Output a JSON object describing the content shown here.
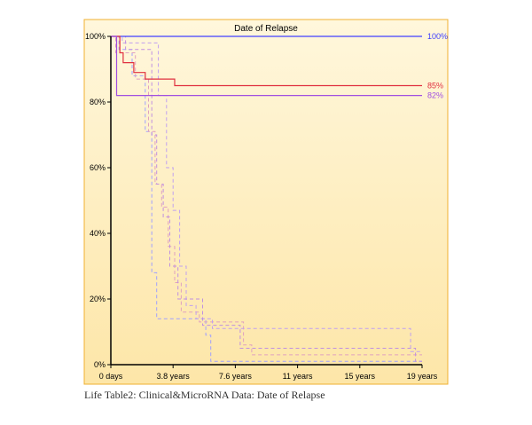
{
  "caption": "Life Table2: Clinical&MicroRNA Data: Date of Relapse",
  "chart_data": {
    "type": "line",
    "title": "Date of Relapse",
    "xlabel": "",
    "ylabel": "",
    "x_ticks": [
      {
        "value": 0,
        "label": "0 days"
      },
      {
        "value": 3.8,
        "label": "3.8 years"
      },
      {
        "value": 7.6,
        "label": "7.6 years"
      },
      {
        "value": 11.4,
        "label": "11 years"
      },
      {
        "value": 15.2,
        "label": "15 years"
      },
      {
        "value": 19,
        "label": "19 years"
      }
    ],
    "y_ticks": [
      {
        "value": 0,
        "label": "0%"
      },
      {
        "value": 20,
        "label": "20%"
      },
      {
        "value": 40,
        "label": "40%"
      },
      {
        "value": 60,
        "label": "60%"
      },
      {
        "value": 80,
        "label": "80%"
      },
      {
        "value": 100,
        "label": "100%"
      }
    ],
    "xlim": [
      0,
      19
    ],
    "ylim": [
      0,
      100
    ],
    "grid": false,
    "legend": "none",
    "colors": {
      "background_top": "#fff6d8",
      "background_bottom": "#fde6a8",
      "border": "#f0b030",
      "axis": "#000000",
      "series_blue": "#4040ff",
      "series_red": "#e03040",
      "series_purple": "#a050e0"
    },
    "series": [
      {
        "style": "solid",
        "color": "#4040ff",
        "end_label": "100%",
        "points": [
          [
            0,
            100
          ],
          [
            19,
            100
          ]
        ]
      },
      {
        "style": "solid",
        "color": "#e03040",
        "end_label": "85%",
        "points": [
          [
            0,
            100
          ],
          [
            0.55,
            100
          ],
          [
            0.55,
            95
          ],
          [
            0.75,
            95
          ],
          [
            0.75,
            92
          ],
          [
            1.4,
            92
          ],
          [
            1.4,
            89
          ],
          [
            2.1,
            89
          ],
          [
            2.1,
            87
          ],
          [
            3.9,
            87
          ],
          [
            3.9,
            85
          ],
          [
            19,
            85
          ]
        ]
      },
      {
        "style": "solid",
        "color": "#a050e0",
        "end_label": "82%",
        "points": [
          [
            0,
            100
          ],
          [
            0.35,
            100
          ],
          [
            0.35,
            82
          ],
          [
            19,
            82
          ]
        ]
      },
      {
        "style": "dashed",
        "color": "#a0a0ff",
        "points": [
          [
            0,
            100
          ],
          [
            0.5,
            100
          ],
          [
            0.5,
            96
          ],
          [
            1.3,
            96
          ],
          [
            1.3,
            88
          ],
          [
            2.1,
            88
          ],
          [
            2.1,
            71
          ],
          [
            2.5,
            71
          ],
          [
            2.5,
            28
          ],
          [
            2.8,
            28
          ],
          [
            2.8,
            14
          ],
          [
            5.8,
            14
          ],
          [
            5.8,
            9
          ],
          [
            6.1,
            9
          ],
          [
            6.1,
            1
          ],
          [
            19,
            1
          ]
        ]
      },
      {
        "style": "dashed",
        "color": "#e0a0c0",
        "points": [
          [
            0,
            100
          ],
          [
            0.3,
            100
          ],
          [
            0.3,
            95
          ],
          [
            1.5,
            95
          ],
          [
            1.5,
            87
          ],
          [
            2.3,
            87
          ],
          [
            2.3,
            71
          ],
          [
            2.7,
            71
          ],
          [
            2.7,
            55
          ],
          [
            3.1,
            55
          ],
          [
            3.1,
            48
          ],
          [
            3.5,
            48
          ],
          [
            3.5,
            36
          ],
          [
            3.9,
            36
          ],
          [
            3.9,
            25
          ],
          [
            4.3,
            25
          ],
          [
            4.3,
            16
          ],
          [
            5.4,
            16
          ],
          [
            5.4,
            13
          ],
          [
            8.1,
            13
          ],
          [
            8.1,
            6
          ],
          [
            8.6,
            6
          ],
          [
            8.6,
            3
          ],
          [
            19,
            3
          ]
        ]
      },
      {
        "style": "dashed",
        "color": "#c0a0f0",
        "points": [
          [
            0,
            100
          ],
          [
            0.7,
            100
          ],
          [
            0.7,
            98
          ],
          [
            2.9,
            98
          ],
          [
            2.9,
            82
          ],
          [
            3.4,
            82
          ],
          [
            3.4,
            60
          ],
          [
            3.8,
            60
          ],
          [
            3.8,
            47
          ],
          [
            4.2,
            47
          ],
          [
            4.2,
            30
          ],
          [
            4.6,
            30
          ],
          [
            4.6,
            18
          ],
          [
            5.2,
            18
          ],
          [
            5.2,
            14
          ],
          [
            6.2,
            14
          ],
          [
            6.2,
            11
          ],
          [
            18.3,
            11
          ],
          [
            18.3,
            4
          ],
          [
            19,
            4
          ]
        ]
      },
      {
        "style": "dashed",
        "color": "#c090e0",
        "points": [
          [
            0,
            100
          ],
          [
            0.9,
            100
          ],
          [
            0.9,
            96
          ],
          [
            2.5,
            96
          ],
          [
            2.5,
            70
          ],
          [
            2.8,
            70
          ],
          [
            2.8,
            55
          ],
          [
            3.2,
            55
          ],
          [
            3.2,
            45
          ],
          [
            3.6,
            45
          ],
          [
            3.6,
            30
          ],
          [
            4.1,
            30
          ],
          [
            4.1,
            20
          ],
          [
            5.6,
            20
          ],
          [
            5.6,
            12
          ],
          [
            7.9,
            12
          ],
          [
            7.9,
            5
          ],
          [
            18.6,
            5
          ],
          [
            18.6,
            1
          ],
          [
            19,
            1
          ]
        ]
      }
    ]
  }
}
